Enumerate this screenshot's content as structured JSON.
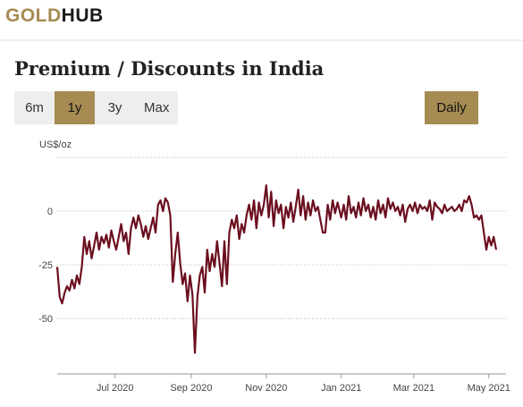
{
  "header": {
    "logo_gold": "GOLD",
    "logo_hub": "HUB"
  },
  "page": {
    "title": "Premium / Discounts in India"
  },
  "range_buttons": [
    {
      "label": "6m",
      "active": false
    },
    {
      "label": "1y",
      "active": true
    },
    {
      "label": "3y",
      "active": false
    },
    {
      "label": "Max",
      "active": false
    }
  ],
  "frequency_button": {
    "label": "Daily"
  },
  "colors": {
    "accent": "#a68c52",
    "line": "#6b0f1f",
    "grid": "#bbbbbb"
  },
  "chart_data": {
    "type": "line",
    "ylabel": "US$/oz",
    "yticks": [
      0,
      -25,
      -50
    ],
    "ylim": [
      -75,
      25
    ],
    "xlim": [
      "2020-05-15",
      "2021-05-15"
    ],
    "xticks": [
      {
        "date": "2020-07-01",
        "label": "Jul 2020"
      },
      {
        "date": "2020-09-01",
        "label": "Sep 2020"
      },
      {
        "date": "2020-11-01",
        "label": "Nov 2020"
      },
      {
        "date": "2021-01-01",
        "label": "Jan 2021"
      },
      {
        "date": "2021-03-01",
        "label": "Mar 2021"
      },
      {
        "date": "2021-05-01",
        "label": "May 2021"
      }
    ],
    "grid": true,
    "series": [
      {
        "points": [
          [
            "2020-05-15",
            -26
          ],
          [
            "2020-05-17",
            -40
          ],
          [
            "2020-05-19",
            -43
          ],
          [
            "2020-05-21",
            -38
          ],
          [
            "2020-05-23",
            -35
          ],
          [
            "2020-05-25",
            -37
          ],
          [
            "2020-05-27",
            -32
          ],
          [
            "2020-05-29",
            -36
          ],
          [
            "2020-05-31",
            -30
          ],
          [
            "2020-06-02",
            -34
          ],
          [
            "2020-06-04",
            -26
          ],
          [
            "2020-06-06",
            -12
          ],
          [
            "2020-06-08",
            -20
          ],
          [
            "2020-06-10",
            -14
          ],
          [
            "2020-06-12",
            -22
          ],
          [
            "2020-06-14",
            -16
          ],
          [
            "2020-06-16",
            -10
          ],
          [
            "2020-06-18",
            -18
          ],
          [
            "2020-06-20",
            -12
          ],
          [
            "2020-06-22",
            -15
          ],
          [
            "2020-06-24",
            -11
          ],
          [
            "2020-06-26",
            -17
          ],
          [
            "2020-06-28",
            -9
          ],
          [
            "2020-06-30",
            -14
          ],
          [
            "2020-07-02",
            -18
          ],
          [
            "2020-07-04",
            -12
          ],
          [
            "2020-07-06",
            -6
          ],
          [
            "2020-07-08",
            -14
          ],
          [
            "2020-07-10",
            -10
          ],
          [
            "2020-07-12",
            -20
          ],
          [
            "2020-07-14",
            -8
          ],
          [
            "2020-07-16",
            -3
          ],
          [
            "2020-07-18",
            -8
          ],
          [
            "2020-07-20",
            -2
          ],
          [
            "2020-07-22",
            -6
          ],
          [
            "2020-07-24",
            -12
          ],
          [
            "2020-07-26",
            -7
          ],
          [
            "2020-07-28",
            -13
          ],
          [
            "2020-07-30",
            -8
          ],
          [
            "2020-08-01",
            -3
          ],
          [
            "2020-08-03",
            -10
          ],
          [
            "2020-08-05",
            3
          ],
          [
            "2020-08-07",
            5
          ],
          [
            "2020-08-09",
            0
          ],
          [
            "2020-08-11",
            6
          ],
          [
            "2020-08-13",
            4
          ],
          [
            "2020-08-15",
            -2
          ],
          [
            "2020-08-17",
            -33
          ],
          [
            "2020-08-19",
            -20
          ],
          [
            "2020-08-21",
            -10
          ],
          [
            "2020-08-23",
            -24
          ],
          [
            "2020-08-25",
            -34
          ],
          [
            "2020-08-27",
            -29
          ],
          [
            "2020-08-29",
            -42
          ],
          [
            "2020-08-31",
            -30
          ],
          [
            "2020-09-02",
            -39
          ],
          [
            "2020-09-04",
            -66
          ],
          [
            "2020-09-06",
            -40
          ],
          [
            "2020-09-08",
            -30
          ],
          [
            "2020-09-10",
            -26
          ],
          [
            "2020-09-12",
            -38
          ],
          [
            "2020-09-14",
            -18
          ],
          [
            "2020-09-16",
            -28
          ],
          [
            "2020-09-18",
            -20
          ],
          [
            "2020-09-20",
            -26
          ],
          [
            "2020-09-22",
            -14
          ],
          [
            "2020-09-24",
            -24
          ],
          [
            "2020-09-26",
            -35
          ],
          [
            "2020-09-28",
            -14
          ],
          [
            "2020-09-30",
            -34
          ],
          [
            "2020-10-02",
            -10
          ],
          [
            "2020-10-04",
            -4
          ],
          [
            "2020-10-06",
            -8
          ],
          [
            "2020-10-08",
            -2
          ],
          [
            "2020-10-10",
            -13
          ],
          [
            "2020-10-12",
            -6
          ],
          [
            "2020-10-14",
            -10
          ],
          [
            "2020-10-16",
            -2
          ],
          [
            "2020-10-18",
            3
          ],
          [
            "2020-10-20",
            -4
          ],
          [
            "2020-10-22",
            5
          ],
          [
            "2020-10-24",
            -8
          ],
          [
            "2020-10-26",
            4
          ],
          [
            "2020-10-28",
            -2
          ],
          [
            "2020-10-30",
            3
          ],
          [
            "2020-11-01",
            12
          ],
          [
            "2020-11-03",
            -3
          ],
          [
            "2020-11-05",
            9
          ],
          [
            "2020-11-07",
            -7
          ],
          [
            "2020-11-09",
            5
          ],
          [
            "2020-11-11",
            -1
          ],
          [
            "2020-11-13",
            3
          ],
          [
            "2020-11-15",
            -8
          ],
          [
            "2020-11-17",
            2
          ],
          [
            "2020-11-19",
            -3
          ],
          [
            "2020-11-21",
            4
          ],
          [
            "2020-11-23",
            -5
          ],
          [
            "2020-11-25",
            2
          ],
          [
            "2020-11-27",
            10
          ],
          [
            "2020-11-29",
            -2
          ],
          [
            "2020-12-01",
            7
          ],
          [
            "2020-12-03",
            -4
          ],
          [
            "2020-12-05",
            4
          ],
          [
            "2020-12-07",
            -2
          ],
          [
            "2020-12-09",
            5
          ],
          [
            "2020-12-11",
            0
          ],
          [
            "2020-12-13",
            2
          ],
          [
            "2020-12-15",
            -4
          ],
          [
            "2020-12-17",
            -10
          ],
          [
            "2020-12-19",
            -10
          ],
          [
            "2020-12-21",
            3
          ],
          [
            "2020-12-23",
            -4
          ],
          [
            "2020-12-25",
            5
          ],
          [
            "2020-12-27",
            -1
          ],
          [
            "2020-12-29",
            4
          ],
          [
            "2021-01-01",
            -3
          ],
          [
            "2021-01-03",
            3
          ],
          [
            "2021-01-05",
            -4
          ],
          [
            "2021-01-07",
            7
          ],
          [
            "2021-01-09",
            -1
          ],
          [
            "2021-01-11",
            2
          ],
          [
            "2021-01-13",
            -3
          ],
          [
            "2021-01-15",
            4
          ],
          [
            "2021-01-17",
            -2
          ],
          [
            "2021-01-19",
            6
          ],
          [
            "2021-01-21",
            0
          ],
          [
            "2021-01-23",
            3
          ],
          [
            "2021-01-25",
            -3
          ],
          [
            "2021-01-27",
            2
          ],
          [
            "2021-01-29",
            -4
          ],
          [
            "2021-01-31",
            5
          ],
          [
            "2021-02-02",
            -1
          ],
          [
            "2021-02-04",
            3
          ],
          [
            "2021-02-06",
            -3
          ],
          [
            "2021-02-08",
            6
          ],
          [
            "2021-02-10",
            1
          ],
          [
            "2021-02-12",
            4
          ],
          [
            "2021-02-14",
            0
          ],
          [
            "2021-02-16",
            2
          ],
          [
            "2021-02-18",
            -2
          ],
          [
            "2021-02-20",
            3
          ],
          [
            "2021-02-22",
            -5
          ],
          [
            "2021-02-24",
            1
          ],
          [
            "2021-02-26",
            3
          ],
          [
            "2021-02-28",
            0
          ],
          [
            "2021-03-02",
            4
          ],
          [
            "2021-03-04",
            -1
          ],
          [
            "2021-03-06",
            3
          ],
          [
            "2021-03-08",
            1
          ],
          [
            "2021-03-10",
            2
          ],
          [
            "2021-03-12",
            0
          ],
          [
            "2021-03-14",
            5
          ],
          [
            "2021-03-16",
            -4
          ],
          [
            "2021-03-18",
            4
          ],
          [
            "2021-03-20",
            2
          ],
          [
            "2021-03-22",
            1
          ],
          [
            "2021-03-24",
            -1
          ],
          [
            "2021-03-26",
            3
          ],
          [
            "2021-03-28",
            0
          ],
          [
            "2021-03-30",
            1
          ],
          [
            "2021-04-01",
            2
          ],
          [
            "2021-04-03",
            0
          ],
          [
            "2021-04-05",
            1
          ],
          [
            "2021-04-07",
            3
          ],
          [
            "2021-04-09",
            0
          ],
          [
            "2021-04-11",
            5
          ],
          [
            "2021-04-13",
            4
          ],
          [
            "2021-04-15",
            7
          ],
          [
            "2021-04-17",
            3
          ],
          [
            "2021-04-19",
            -3
          ],
          [
            "2021-04-21",
            -2
          ],
          [
            "2021-04-23",
            -4
          ],
          [
            "2021-04-25",
            -2
          ],
          [
            "2021-04-27",
            -10
          ],
          [
            "2021-04-29",
            -18
          ],
          [
            "2021-05-01",
            -12
          ],
          [
            "2021-05-03",
            -16
          ],
          [
            "2021-05-05",
            -12
          ],
          [
            "2021-05-07",
            -18
          ]
        ]
      }
    ]
  }
}
